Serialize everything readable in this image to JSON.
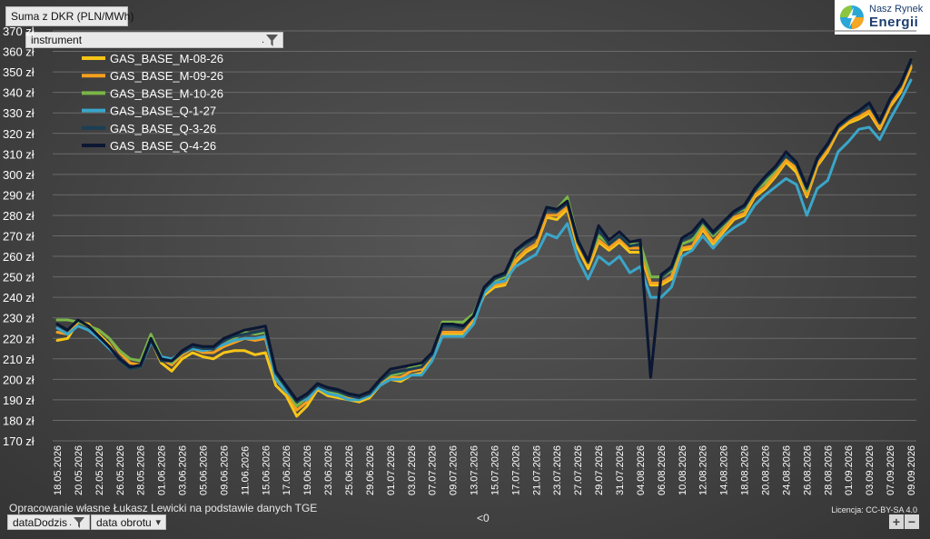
{
  "pivot": {
    "value_field": "Suma z DKR (PLN/MWh)",
    "legend_field": "instrument",
    "axis_fields": [
      "dataDodzis",
      "data obrotu"
    ]
  },
  "logo": {
    "line1": "Nasz Rynek",
    "line2": "Energii"
  },
  "footer": {
    "source": "Opracowanie własne Łukasz Lewicki na podstawie danych TGE",
    "license": "Licencja: CC-BY-SA 4.0",
    "empty_marker": "<0"
  },
  "zoom": {
    "in": "+",
    "out": "−"
  },
  "colors": {
    "background": "#474747",
    "grid": "#6a6a6a",
    "text": "#ffffff"
  },
  "chart_data": {
    "type": "line",
    "title": "",
    "xlabel": "",
    "ylabel": "",
    "ylim": [
      170,
      370
    ],
    "y_ticks": [
      170,
      180,
      190,
      200,
      210,
      220,
      230,
      240,
      250,
      260,
      270,
      280,
      290,
      300,
      310,
      320,
      330,
      340,
      350,
      360,
      370
    ],
    "y_tick_suffix": " zł",
    "grid": true,
    "legend_position": "top-left",
    "x_tick_labels": [
      "18.05.2026",
      "20.05.2026",
      "22.05.2026",
      "26.05.2026",
      "28.05.2026",
      "01.06.2026",
      "03.06.2026",
      "05.06.2026",
      "09.06.2026",
      "11.06.2026",
      "15.06.2026",
      "17.06.2026",
      "19.06.2026",
      "23.06.2026",
      "25.06.2026",
      "29.06.2026",
      "01.07.2026",
      "03.07.2026",
      "07.07.2026",
      "09.07.2026",
      "13.07.2026",
      "15.07.2026",
      "17.07.2026",
      "21.07.2026",
      "23.07.2026",
      "27.07.2026",
      "29.07.2026",
      "31.07.2026",
      "04.08.2026",
      "06.08.2026",
      "10.08.2026",
      "12.08.2026",
      "14.08.2026",
      "18.08.2026",
      "20.08.2026",
      "24.08.2026",
      "26.08.2026",
      "28.08.2026",
      "01.09.2026",
      "03.09.2026",
      "07.09.2026",
      "09.09.2026"
    ],
    "series": [
      {
        "name": "GAS_BASE_M-08-26",
        "color": "#f5c518",
        "values": [
          219,
          220,
          228,
          227,
          222,
          217,
          209,
          205,
          206,
          219,
          208,
          204,
          210,
          213,
          211,
          210,
          213,
          214,
          214,
          212,
          213,
          197,
          192,
          182,
          187,
          195,
          192,
          191,
          190,
          189,
          191,
          197,
          200,
          199,
          202,
          203,
          210,
          222,
          222,
          222,
          229,
          241,
          245,
          246,
          257,
          262,
          265,
          279,
          278,
          283,
          264,
          254,
          267,
          263,
          267,
          262,
          262,
          246,
          246,
          249,
          263,
          264,
          273,
          266,
          272,
          278,
          280,
          289,
          293,
          299,
          306,
          301,
          289,
          304,
          311,
          321,
          325,
          327,
          330,
          322,
          333,
          340,
          352
        ]
      },
      {
        "name": "GAS_BASE_M-09-26",
        "color": "#f5a020",
        "values": [
          223,
          222,
          228,
          226,
          224,
          220,
          213,
          208,
          207,
          220,
          210,
          207,
          212,
          215,
          213,
          213,
          216,
          218,
          220,
          219,
          220,
          200,
          194,
          185,
          189,
          196,
          193,
          192,
          191,
          190,
          192,
          198,
          201,
          201,
          204,
          205,
          211,
          223,
          223,
          223,
          230,
          242,
          246,
          247,
          258,
          263,
          266,
          280,
          280,
          284,
          266,
          256,
          268,
          264,
          268,
          264,
          264,
          247,
          247,
          250,
          264,
          265,
          274,
          267,
          273,
          279,
          281,
          290,
          294,
          300,
          307,
          303,
          290,
          305,
          312,
          322,
          326,
          328,
          331,
          323,
          334,
          341,
          353
        ]
      },
      {
        "name": "GAS_BASE_M-10-26",
        "color": "#7ab648",
        "values": [
          229,
          229,
          228,
          226,
          224,
          220,
          214,
          210,
          209,
          222,
          211,
          208,
          213,
          216,
          214,
          215,
          217,
          220,
          223,
          222,
          223,
          201,
          195,
          187,
          191,
          197,
          194,
          193,
          192,
          191,
          193,
          199,
          202,
          203,
          206,
          207,
          212,
          228,
          228,
          228,
          232,
          244,
          248,
          250,
          261,
          266,
          269,
          284,
          283,
          289,
          268,
          258,
          270,
          266,
          270,
          266,
          266,
          250,
          250,
          253,
          266,
          268,
          276,
          270,
          275,
          281,
          283,
          292,
          296,
          302,
          309,
          305,
          292,
          307,
          314,
          323,
          327,
          330,
          334,
          325,
          336,
          343,
          355
        ]
      },
      {
        "name": "GAS_BASE_Q-1-27",
        "color": "#3aa6c9",
        "values": [
          225,
          222,
          226,
          224,
          220,
          215,
          210,
          206,
          206,
          218,
          211,
          210,
          213,
          215,
          214,
          215,
          217,
          219,
          220,
          220,
          221,
          200,
          194,
          190,
          190,
          196,
          193,
          192,
          190,
          190,
          192,
          197,
          200,
          200,
          202,
          202,
          209,
          221,
          221,
          221,
          227,
          242,
          247,
          248,
          255,
          258,
          261,
          271,
          269,
          276,
          259,
          249,
          260,
          256,
          260,
          252,
          255,
          240,
          240,
          245,
          260,
          263,
          270,
          264,
          270,
          274,
          277,
          285,
          290,
          294,
          298,
          295,
          280,
          293,
          297,
          311,
          316,
          322,
          323,
          317,
          327,
          336,
          346
        ]
      },
      {
        "name": "GAS_BASE_Q-3-26",
        "color": "#1b3e54",
        "values": [
          227,
          224,
          229,
          226,
          221,
          216,
          209,
          205,
          206,
          219,
          209,
          209,
          213,
          216,
          215,
          215,
          219,
          221,
          222,
          223,
          224,
          203,
          196,
          189,
          192,
          197,
          195,
          194,
          192,
          191,
          193,
          199,
          203,
          204,
          205,
          206,
          212,
          226,
          226,
          225,
          231,
          244,
          249,
          251,
          262,
          266,
          269,
          283,
          282,
          286,
          267,
          257,
          273,
          266,
          270,
          265,
          266,
          201,
          250,
          254,
          268,
          270,
          277,
          271,
          276,
          281,
          284,
          292,
          298,
          303,
          309,
          305,
          293,
          307,
          314,
          323,
          327,
          330,
          334,
          325,
          336,
          343,
          355
        ]
      },
      {
        "name": "GAS_BASE_Q-4-26",
        "color": "#0c1733",
        "values": [
          227,
          224,
          229,
          226,
          221,
          216,
          210,
          206,
          207,
          220,
          210,
          209,
          214,
          217,
          216,
          216,
          220,
          222,
          224,
          225,
          226,
          204,
          197,
          190,
          193,
          198,
          196,
          195,
          193,
          192,
          194,
          200,
          205,
          206,
          207,
          208,
          213,
          227,
          227,
          226,
          231,
          245,
          250,
          252,
          263,
          267,
          270,
          284,
          283,
          287,
          268,
          258,
          275,
          268,
          272,
          267,
          268,
          201,
          251,
          255,
          269,
          272,
          278,
          272,
          277,
          282,
          285,
          293,
          299,
          304,
          311,
          306,
          294,
          308,
          315,
          324,
          328,
          331,
          335,
          326,
          337,
          344,
          356
        ]
      }
    ]
  }
}
